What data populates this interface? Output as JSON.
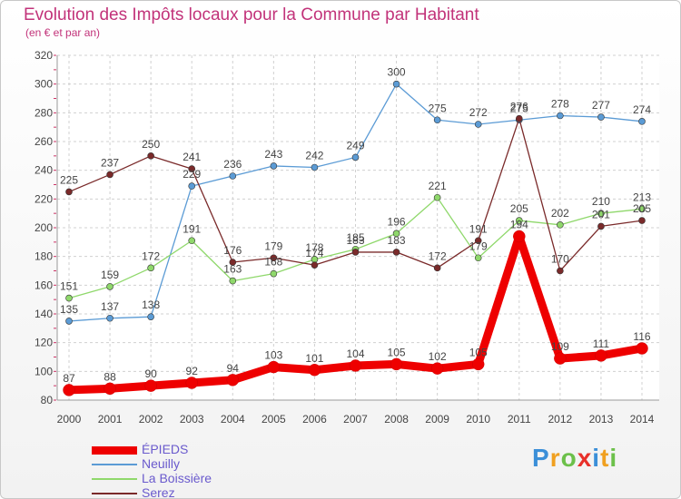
{
  "chart_data": {
    "type": "line",
    "title": "Evolution des Impôts locaux pour la Commune par Habitant",
    "subtitle": "(en € et par an)",
    "xlabel": "",
    "ylabel": "",
    "ylim": [
      80,
      320
    ],
    "yticks": [
      80,
      100,
      120,
      140,
      160,
      180,
      200,
      220,
      240,
      260,
      280,
      300,
      320
    ],
    "categories": [
      "2000",
      "2001",
      "2002",
      "2003",
      "2004",
      "2005",
      "2006",
      "2007",
      "2008",
      "2009",
      "2010",
      "2011",
      "2012",
      "2013",
      "2014"
    ],
    "series": [
      {
        "name": "Neuilly",
        "color": "#5b9bd5",
        "values": [
          135,
          137,
          138,
          229,
          236,
          243,
          242,
          249,
          300,
          275,
          272,
          275,
          278,
          277,
          274
        ]
      },
      {
        "name": "La Boissière",
        "color": "#8fd86b",
        "values": [
          151,
          159,
          172,
          191,
          163,
          168,
          178,
          185,
          196,
          221,
          179,
          205,
          202,
          210,
          213
        ]
      },
      {
        "name": "Serez",
        "color": "#7a2a2a",
        "values": [
          225,
          237,
          250,
          241,
          176,
          179,
          174,
          183,
          183,
          172,
          191,
          276,
          170,
          201,
          205
        ]
      },
      {
        "name": "ÉPIEDS",
        "color": "#ee0000",
        "values": [
          87,
          88,
          90,
          92,
          94,
          103,
          101,
          104,
          105,
          102,
          105,
          194,
          109,
          111,
          116
        ]
      }
    ],
    "legend_order": [
      "ÉPIEDS",
      "Neuilly",
      "La Boissière",
      "Serez"
    ],
    "legend_position": "bottom-left"
  },
  "logo": {
    "text": "Proxiti",
    "letters": [
      {
        "ch": "P",
        "color": "#3b8fd8"
      },
      {
        "ch": "r",
        "color": "#f0a020"
      },
      {
        "ch": "o",
        "color": "#6cc04a"
      },
      {
        "ch": "x",
        "color": "#e8302a"
      },
      {
        "ch": "i",
        "color": "#3b8fd8"
      },
      {
        "ch": "t",
        "color": "#f0a020"
      },
      {
        "ch": "i",
        "color": "#6cc04a"
      }
    ]
  }
}
